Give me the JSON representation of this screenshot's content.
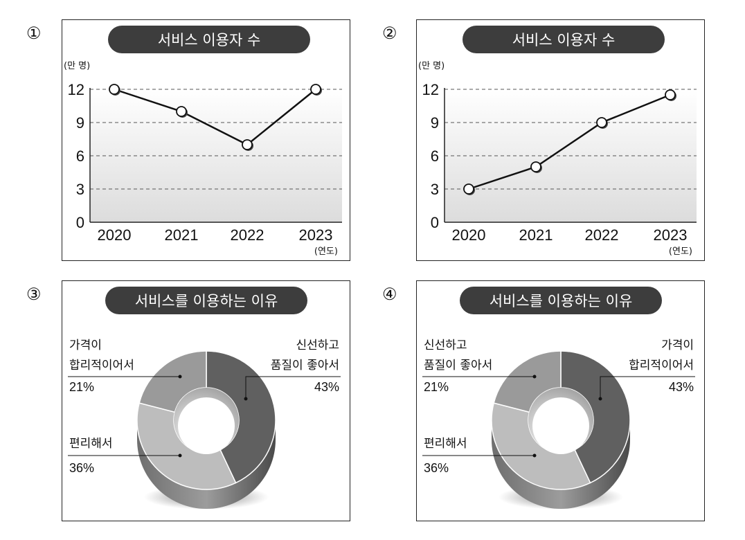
{
  "charts": [
    {
      "marker": "①",
      "title": "서비스 이용자 수",
      "y_unit": "(만 명)",
      "x_unit": "(연도)"
    },
    {
      "marker": "②",
      "title": "서비스 이용자 수",
      "y_unit": "(만 명)",
      "x_unit": "(연도)"
    },
    {
      "marker": "③",
      "title": "서비스를 이용하는 이유",
      "labels": [
        {
          "lines": [
            "가격이",
            "합리적이어서"
          ],
          "pct": "21%"
        },
        {
          "lines": [
            "신선하고",
            "품질이 좋아서"
          ],
          "pct": "43%"
        },
        {
          "lines": [
            "편리해서"
          ],
          "pct": "36%"
        }
      ]
    },
    {
      "marker": "④",
      "title": "서비스를 이용하는 이유",
      "labels": [
        {
          "lines": [
            "신선하고",
            "품질이 좋아서"
          ],
          "pct": "21%"
        },
        {
          "lines": [
            "가격이",
            "합리적이어서"
          ],
          "pct": "43%"
        },
        {
          "lines": [
            "편리해서"
          ],
          "pct": "36%"
        }
      ]
    }
  ],
  "chart_data": [
    {
      "type": "line",
      "title": "서비스 이용자 수",
      "ylabel": "(만 명)",
      "xlabel": "(연도)",
      "categories": [
        "2020",
        "2021",
        "2022",
        "2023"
      ],
      "values": [
        12,
        10,
        7,
        12
      ],
      "yticks": [
        0,
        3,
        6,
        9,
        12
      ],
      "ylim": [
        0,
        12
      ],
      "grid": true
    },
    {
      "type": "line",
      "title": "서비스 이용자 수",
      "ylabel": "(만 명)",
      "xlabel": "(연도)",
      "categories": [
        "2020",
        "2021",
        "2022",
        "2023"
      ],
      "values": [
        3,
        5,
        9,
        11.5
      ],
      "yticks": [
        0,
        3,
        6,
        9,
        12
      ],
      "ylim": [
        0,
        12
      ],
      "grid": true
    },
    {
      "type": "pie",
      "title": "서비스를 이용하는 이유",
      "categories": [
        "신선하고 품질이 좋아서",
        "편리해서",
        "가격이 합리적이어서"
      ],
      "values": [
        43,
        36,
        21
      ],
      "colors": [
        "#606060",
        "#bdbdbd",
        "#9a9a9a"
      ]
    },
    {
      "type": "pie",
      "title": "서비스를 이용하는 이유",
      "categories": [
        "가격이 합리적이어서",
        "편리해서",
        "신선하고 품질이 좋아서"
      ],
      "values": [
        43,
        36,
        21
      ],
      "colors": [
        "#606060",
        "#bdbdbd",
        "#9a9a9a"
      ]
    }
  ]
}
